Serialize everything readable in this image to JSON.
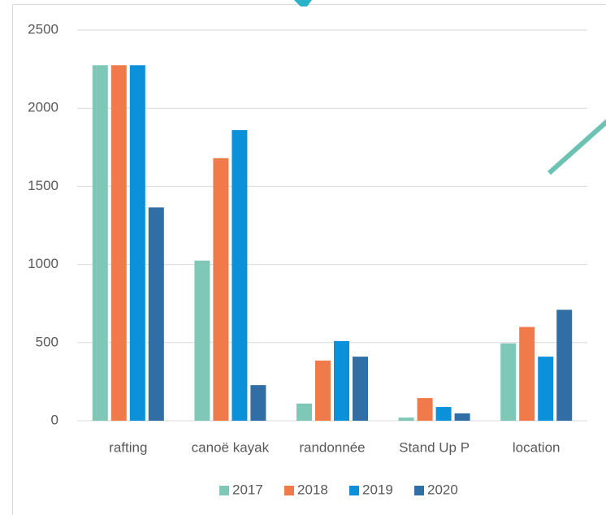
{
  "chart_data": {
    "type": "bar",
    "categories": [
      "rafting",
      "canoë kayak",
      "randonnée",
      "Stand Up P",
      "location"
    ],
    "series": [
      {
        "name": "2017",
        "color": "#7fc8b8",
        "values": [
          2275,
          1025,
          110,
          20,
          495
        ]
      },
      {
        "name": "2018",
        "color": "#f07a4a",
        "values": [
          2275,
          1680,
          385,
          145,
          600
        ]
      },
      {
        "name": "2019",
        "color": "#0b91d9",
        "values": [
          2275,
          1860,
          510,
          88,
          410
        ]
      },
      {
        "name": "2020",
        "color": "#316ea5",
        "values": [
          1365,
          228,
          410,
          47,
          710
        ]
      }
    ],
    "ylim": [
      0,
      2500
    ],
    "yticks": [
      0,
      500,
      1000,
      1500,
      2000,
      2500
    ],
    "grid": true
  }
}
